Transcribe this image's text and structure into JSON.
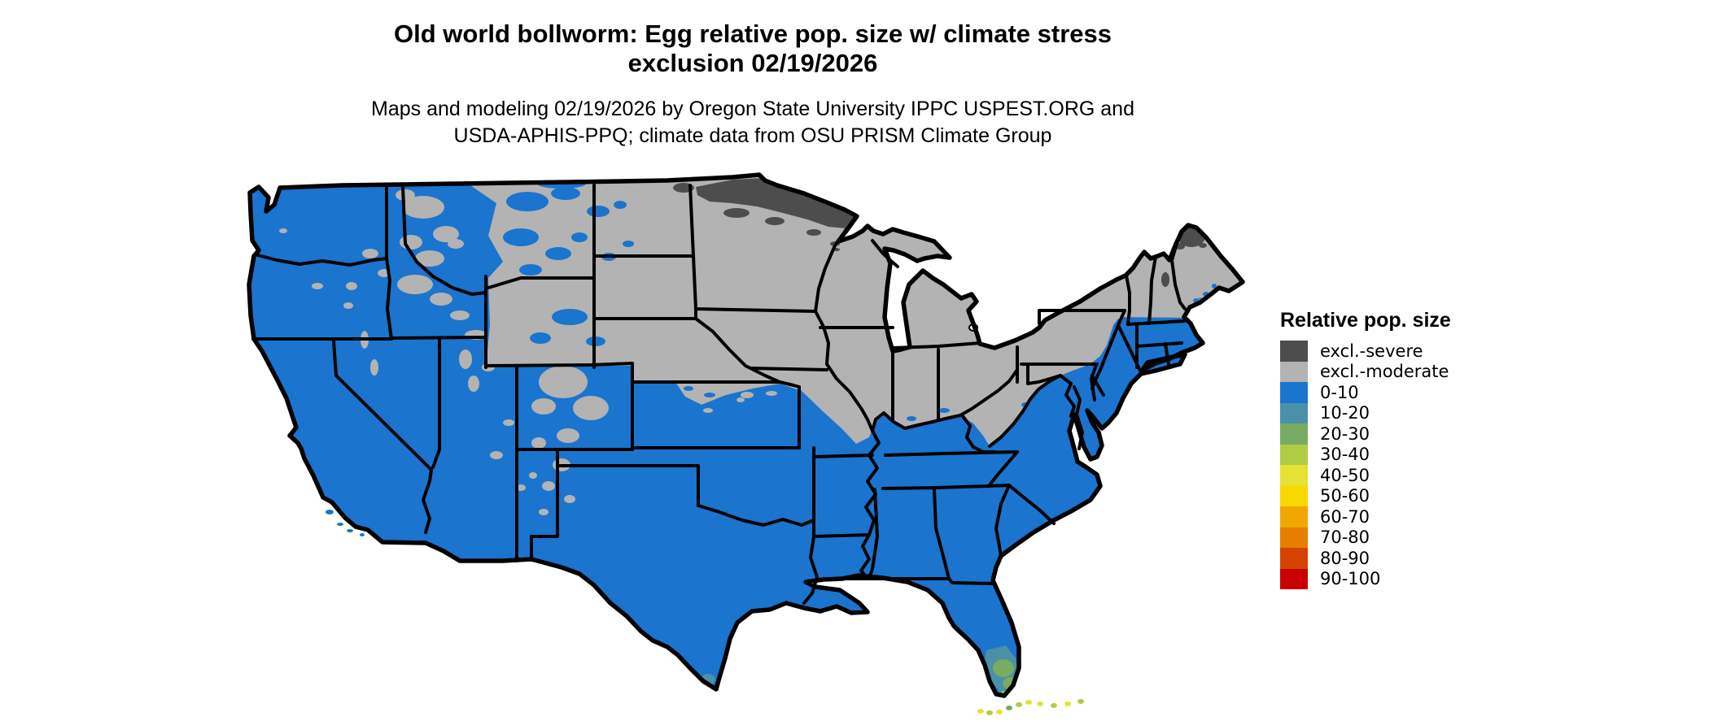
{
  "title": {
    "line1": "Old world bollworm: Egg relative pop. size w/ climate stress",
    "line2": "exclusion 02/19/2026"
  },
  "subtitle": {
    "line1": "Maps and modeling 02/19/2026 by Oregon State University IPPC USPEST.ORG and",
    "line2": "USDA-APHIS-PPQ; climate data from OSU PRISM Climate Group"
  },
  "legend": {
    "title": "Relative pop. size",
    "items": [
      {
        "label": "excl.-severe",
        "color": "#4d4d4d"
      },
      {
        "label": "excl.-moderate",
        "color": "#b3b3b3"
      },
      {
        "label": "0-10",
        "color": "#1b74cd"
      },
      {
        "label": "10-20",
        "color": "#4a90a8"
      },
      {
        "label": "20-30",
        "color": "#79ab62"
      },
      {
        "label": "30-40",
        "color": "#b0cc43"
      },
      {
        "label": "40-50",
        "color": "#e5e233"
      },
      {
        "label": "50-60",
        "color": "#f9d700"
      },
      {
        "label": "60-70",
        "color": "#f0a800"
      },
      {
        "label": "70-80",
        "color": "#e87d00"
      },
      {
        "label": "80-90",
        "color": "#d64300"
      },
      {
        "label": "90-100",
        "color": "#c90000"
      }
    ]
  },
  "colors": {
    "background": "#ffffff",
    "map_border": "#000000",
    "excl_severe": "#4d4d4d",
    "excl_moderate": "#b3b3b3",
    "pop_0_10": "#1b74cd",
    "pop_10_20": "#4a90a8",
    "pop_20_30": "#79ab62",
    "pop_30_40": "#b0cc43",
    "pop_40_50": "#e5e233",
    "pop_50_60": "#f9d700"
  }
}
